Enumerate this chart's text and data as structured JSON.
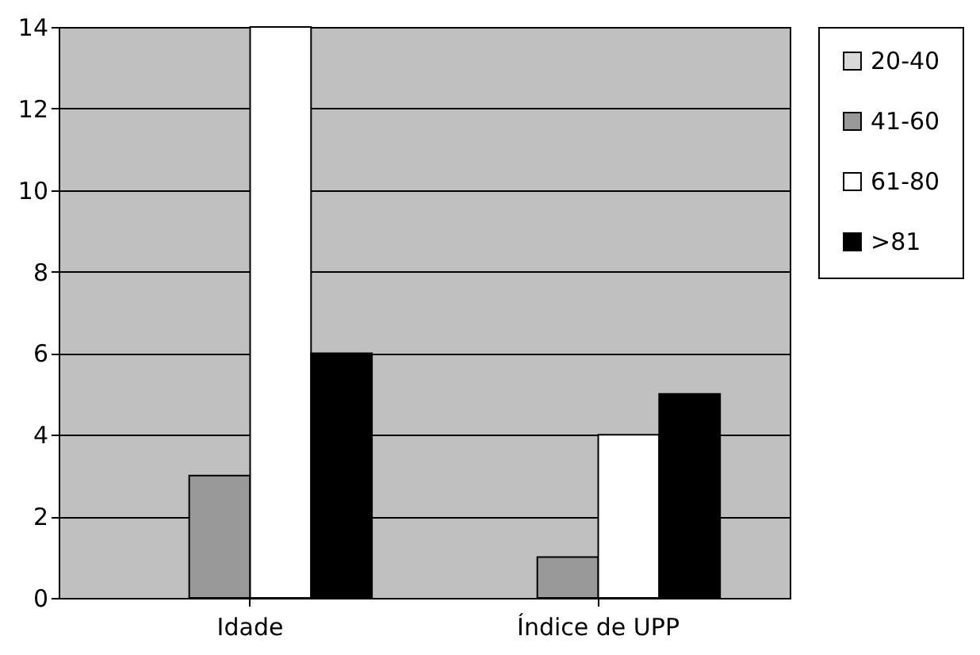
{
  "chart_data": {
    "type": "bar",
    "categories": [
      "Idade",
      "Índice de UPP"
    ],
    "series": [
      {
        "name": "20-40",
        "color": "#d9d9d9",
        "values": [
          0,
          0
        ]
      },
      {
        "name": "41-60",
        "color": "#999999",
        "values": [
          3,
          1
        ]
      },
      {
        "name": "61-80",
        "color": "#ffffff",
        "values": [
          14,
          4
        ]
      },
      {
        "name": ">81",
        "color": "#000000",
        "values": [
          6,
          5
        ]
      }
    ],
    "ylim": [
      0,
      14
    ],
    "yticks": [
      0,
      2,
      4,
      6,
      8,
      10,
      12,
      14
    ],
    "grid": "y",
    "legend": "right"
  }
}
